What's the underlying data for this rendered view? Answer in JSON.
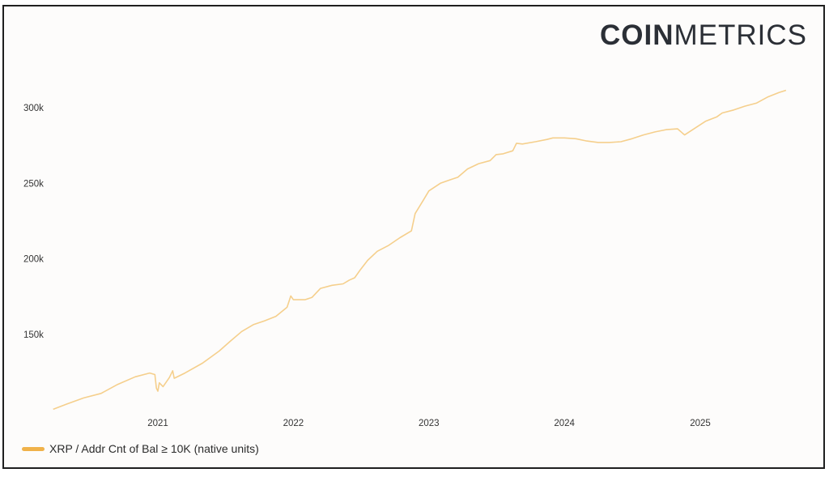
{
  "brand": {
    "logo_bold": "COIN",
    "logo_light": "METRICS"
  },
  "chart_data": {
    "type": "line",
    "title": "",
    "xlabel": "",
    "ylabel": "",
    "y_ticks": [
      150000,
      200000,
      250000,
      300000
    ],
    "y_tick_labels": [
      "150k",
      "200k",
      "250k",
      "300k"
    ],
    "x_ticks": [
      "2021-01-01",
      "2022-01-01",
      "2023-01-01",
      "2024-01-01",
      "2025-01-01"
    ],
    "x_tick_labels": [
      "2021",
      "2022",
      "2023",
      "2024",
      "2025"
    ],
    "xlim": [
      "2020-03-01",
      "2025-12-01"
    ],
    "ylim": [
      95000,
      330000
    ],
    "grid": false,
    "legend_position": "bottom-left",
    "colors": {
      "line": "#f5cf8c",
      "legend": "#f0b24a"
    },
    "series": [
      {
        "name": "XRP / Addr Cnt of Bal ≥ 10K (native units)",
        "points": [
          [
            "2020-03-25",
            100500
          ],
          [
            "2020-05-01",
            104000
          ],
          [
            "2020-06-15",
            108000
          ],
          [
            "2020-08-01",
            111000
          ],
          [
            "2020-09-15",
            117000
          ],
          [
            "2020-11-01",
            122000
          ],
          [
            "2020-12-10",
            124500
          ],
          [
            "2020-12-24",
            123500
          ],
          [
            "2020-12-28",
            114500
          ],
          [
            "2021-01-01",
            112500
          ],
          [
            "2021-01-05",
            118000
          ],
          [
            "2021-01-15",
            115500
          ],
          [
            "2021-02-01",
            121500
          ],
          [
            "2021-02-10",
            126000
          ],
          [
            "2021-02-14",
            121000
          ],
          [
            "2021-03-15",
            124500
          ],
          [
            "2021-05-01",
            131000
          ],
          [
            "2021-06-15",
            139000
          ],
          [
            "2021-07-15",
            145500
          ],
          [
            "2021-08-15",
            152000
          ],
          [
            "2021-09-15",
            156500
          ],
          [
            "2021-10-15",
            159000
          ],
          [
            "2021-11-15",
            162000
          ],
          [
            "2021-12-15",
            168000
          ],
          [
            "2021-12-25",
            175500
          ],
          [
            "2022-01-01",
            173000
          ],
          [
            "2022-02-01",
            173000
          ],
          [
            "2022-02-20",
            174500
          ],
          [
            "2022-03-15",
            180500
          ],
          [
            "2022-04-15",
            182500
          ],
          [
            "2022-05-15",
            183500
          ],
          [
            "2022-06-01",
            186000
          ],
          [
            "2022-06-15",
            187500
          ],
          [
            "2022-07-01",
            193000
          ],
          [
            "2022-07-20",
            199000
          ],
          [
            "2022-08-15",
            205000
          ],
          [
            "2022-09-15",
            209000
          ],
          [
            "2022-10-15",
            214000
          ],
          [
            "2022-11-15",
            218500
          ],
          [
            "2022-11-25",
            230000
          ],
          [
            "2022-12-15",
            238000
          ],
          [
            "2023-01-01",
            245000
          ],
          [
            "2023-02-01",
            250000
          ],
          [
            "2023-03-01",
            252500
          ],
          [
            "2023-03-20",
            254000
          ],
          [
            "2023-04-15",
            259500
          ],
          [
            "2023-05-15",
            263000
          ],
          [
            "2023-06-15",
            265000
          ],
          [
            "2023-07-01",
            269000
          ],
          [
            "2023-07-20",
            269500
          ],
          [
            "2023-08-15",
            271500
          ],
          [
            "2023-08-25",
            276500
          ],
          [
            "2023-09-10",
            276000
          ],
          [
            "2023-10-15",
            277500
          ],
          [
            "2023-11-15",
            279000
          ],
          [
            "2023-12-01",
            280000
          ],
          [
            "2024-01-01",
            280000
          ],
          [
            "2024-02-01",
            279500
          ],
          [
            "2024-03-01",
            278000
          ],
          [
            "2024-04-01",
            277000
          ],
          [
            "2024-05-01",
            277000
          ],
          [
            "2024-06-01",
            277500
          ],
          [
            "2024-07-01",
            279500
          ],
          [
            "2024-08-01",
            282000
          ],
          [
            "2024-09-01",
            284000
          ],
          [
            "2024-10-01",
            285500
          ],
          [
            "2024-11-01",
            286000
          ],
          [
            "2024-11-15",
            283000
          ],
          [
            "2024-11-20",
            282000
          ],
          [
            "2024-12-15",
            286000
          ],
          [
            "2025-01-15",
            291000
          ],
          [
            "2025-02-15",
            294000
          ],
          [
            "2025-03-01",
            296500
          ],
          [
            "2025-04-01",
            298500
          ],
          [
            "2025-05-01",
            301000
          ],
          [
            "2025-06-01",
            303000
          ],
          [
            "2025-07-01",
            307000
          ],
          [
            "2025-08-01",
            310000
          ],
          [
            "2025-08-20",
            311500
          ]
        ]
      }
    ]
  }
}
